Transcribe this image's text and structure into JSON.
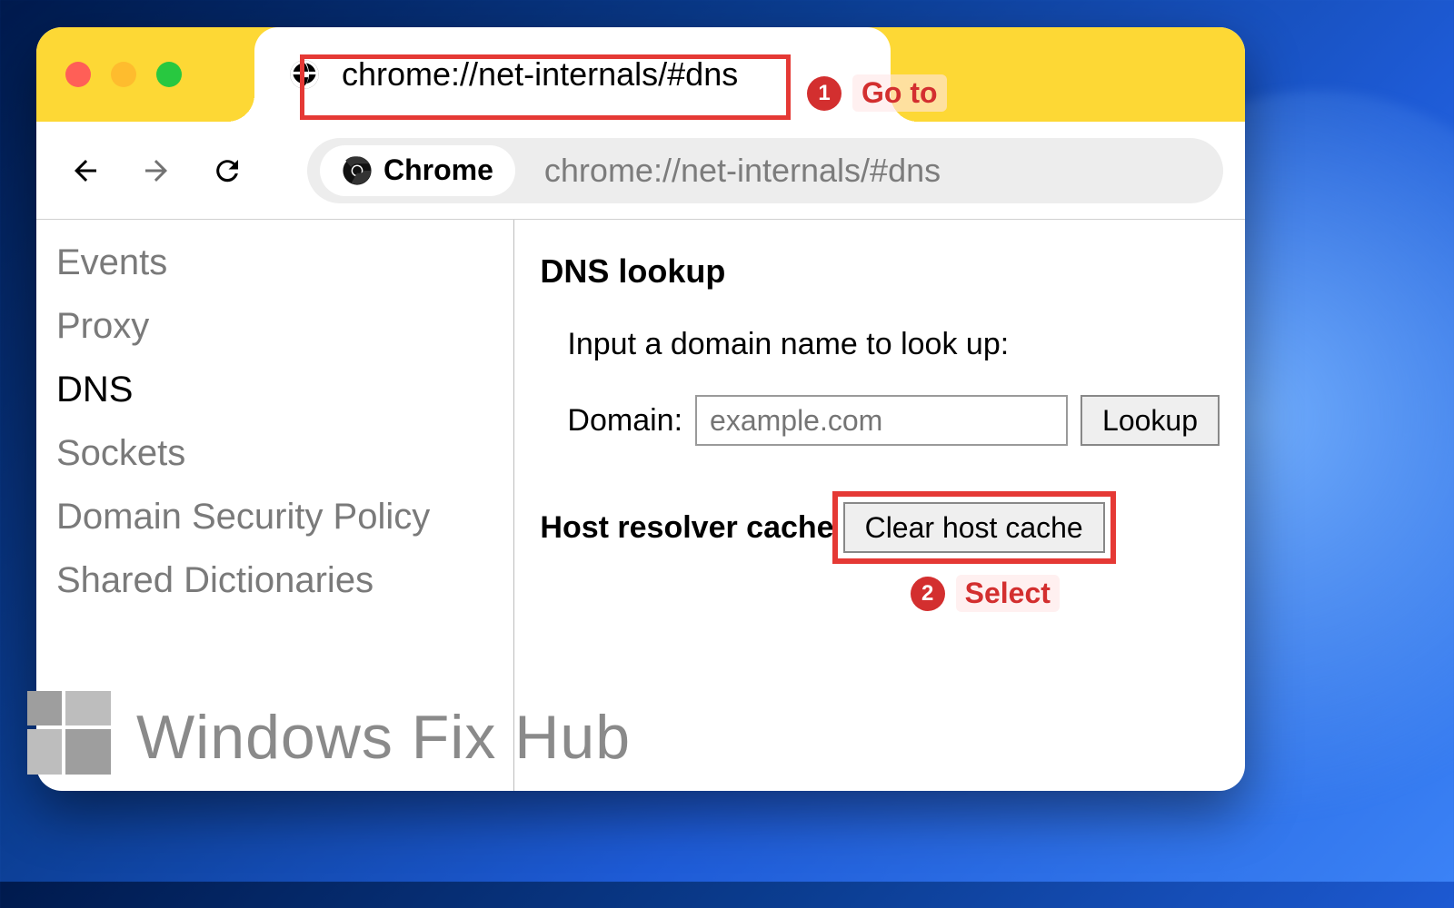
{
  "colors": {
    "tabbar_bg": "#fdd835",
    "window_bg": "#ffffff",
    "highlight_border": "#e53935",
    "annotation_text": "#d32f2f",
    "badge_bg": "#d32f2f",
    "sidebar_text": "#7a7a7a",
    "sidebar_active_text": "#000000",
    "omnibox_bg": "#ededed",
    "omnibox_text": "#7c7c7c",
    "input_border": "#9a9a9a",
    "button_bg": "#efefef",
    "watermark_text": "#8a8a8a",
    "traffic_red": "#ff5f57",
    "traffic_yellow": "#febc2e",
    "traffic_green": "#28c840"
  },
  "tab": {
    "title": "chrome://net-internals/#dns",
    "icon": "globe-icon"
  },
  "omnibox": {
    "chip_label": "Chrome",
    "chip_icon": "chrome-icon",
    "url": "chrome://net-internals/#dns"
  },
  "sidebar": {
    "items": [
      {
        "label": "Events",
        "active": false
      },
      {
        "label": "Proxy",
        "active": false
      },
      {
        "label": "DNS",
        "active": true
      },
      {
        "label": "Sockets",
        "active": false
      },
      {
        "label": "Domain Security Policy",
        "active": false
      },
      {
        "label": "Shared Dictionaries",
        "active": false
      }
    ]
  },
  "main": {
    "heading": "DNS lookup",
    "instruction": "Input a domain name to look up:",
    "domain_label": "Domain:",
    "domain_placeholder": "example.com",
    "lookup_button": "Lookup",
    "host_heading": "Host resolver cache",
    "clear_button": "Clear host cache"
  },
  "annotations": [
    {
      "num": "1",
      "text": "Go to"
    },
    {
      "num": "2",
      "text": "Select"
    }
  ],
  "watermark": {
    "text": "Windows Fix Hub"
  }
}
